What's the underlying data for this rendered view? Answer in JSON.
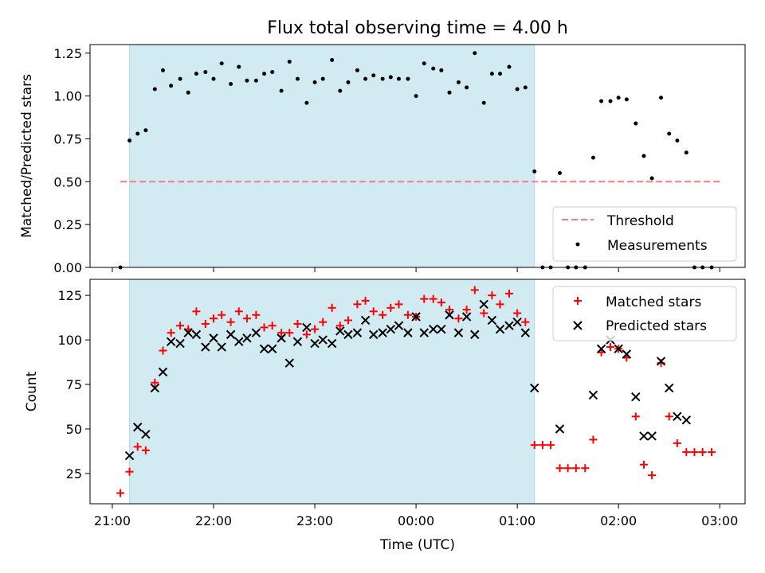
{
  "chart_data": {
    "title": "Flux total observing time = 4.00 h",
    "xlabel": "Time (UTC)",
    "x_tick_labels": [
      "21:00",
      "22:00",
      "23:00",
      "00:00",
      "01:00",
      "02:00",
      "03:00"
    ],
    "x_tick_hours": [
      21,
      22,
      23,
      24,
      25,
      26,
      27
    ],
    "x_range_hours": [
      20.78,
      27.25
    ],
    "observing_window_hours": [
      21.17,
      25.17
    ],
    "window_color": "#add8e6",
    "panels": [
      {
        "type": "scatter",
        "ylabel": "Matched/Predicted stars",
        "ylim": [
          0,
          1.3
        ],
        "y_ticks": [
          0,
          0.25,
          0.5,
          0.75,
          1.0,
          1.25
        ],
        "y_tick_labels": [
          "0.00",
          "0.25",
          "0.50",
          "0.75",
          "1.00",
          "1.25"
        ],
        "legend_position": "lower-right",
        "threshold": {
          "name": "Threshold",
          "value": 0.5,
          "x_range": [
            21.08,
            27.0
          ],
          "color": "#f08080"
        },
        "series": [
          {
            "name": "Measurements",
            "marker": "dot",
            "color": "#000000",
            "x": [
              21.08,
              21.17,
              21.25,
              21.33,
              21.42,
              21.5,
              21.58,
              21.67,
              21.75,
              21.83,
              21.92,
              22.0,
              22.08,
              22.17,
              22.25,
              22.33,
              22.42,
              22.5,
              22.58,
              22.67,
              22.75,
              22.83,
              22.92,
              23.0,
              23.08,
              23.17,
              23.25,
              23.33,
              23.42,
              23.5,
              23.58,
              23.67,
              23.75,
              23.83,
              23.92,
              24.0,
              24.08,
              24.17,
              24.25,
              24.33,
              24.42,
              24.5,
              24.58,
              24.67,
              24.75,
              24.83,
              24.92,
              25.0,
              25.08,
              25.17,
              25.25,
              25.33,
              25.42,
              25.5,
              25.58,
              25.67,
              25.75,
              25.83,
              25.92,
              26.0,
              26.08,
              26.17,
              26.25,
              26.33,
              26.42,
              26.5,
              26.58,
              26.67,
              26.75,
              26.83,
              26.92
            ],
            "y": [
              0.0,
              0.74,
              0.78,
              0.8,
              1.04,
              1.15,
              1.06,
              1.1,
              1.02,
              1.13,
              1.14,
              1.1,
              1.19,
              1.07,
              1.17,
              1.09,
              1.09,
              1.13,
              1.14,
              1.03,
              1.2,
              1.1,
              0.96,
              1.08,
              1.1,
              1.21,
              1.03,
              1.08,
              1.15,
              1.1,
              1.12,
              1.1,
              1.11,
              1.1,
              1.1,
              1.0,
              1.19,
              1.16,
              1.15,
              1.02,
              1.08,
              1.05,
              1.25,
              0.96,
              1.13,
              1.13,
              1.17,
              1.04,
              1.05,
              0.56,
              0.0,
              0.0,
              0.55,
              0.0,
              0.0,
              0.0,
              0.64,
              0.97,
              0.97,
              0.99,
              0.98,
              0.84,
              0.65,
              0.52,
              0.99,
              0.78,
              0.74,
              0.67,
              0.0,
              0.0,
              0.0
            ]
          }
        ]
      },
      {
        "type": "scatter",
        "ylabel": "Count",
        "ylim": [
          8,
          134
        ],
        "y_ticks": [
          25,
          50,
          75,
          100,
          125
        ],
        "y_tick_labels": [
          "25",
          "50",
          "75",
          "100",
          "125"
        ],
        "legend_position": "top-right",
        "series": [
          {
            "name": "Matched stars",
            "marker": "plus",
            "color": "#ff0000",
            "x": [
              21.08,
              21.17,
              21.25,
              21.33,
              21.42,
              21.5,
              21.58,
              21.67,
              21.75,
              21.83,
              21.92,
              22.0,
              22.08,
              22.17,
              22.25,
              22.33,
              22.42,
              22.5,
              22.58,
              22.67,
              22.75,
              22.83,
              22.92,
              23.0,
              23.08,
              23.17,
              23.25,
              23.33,
              23.42,
              23.5,
              23.58,
              23.67,
              23.75,
              23.83,
              23.92,
              24.0,
              24.08,
              24.17,
              24.25,
              24.33,
              24.42,
              24.5,
              24.58,
              24.67,
              24.75,
              24.83,
              24.92,
              25.0,
              25.08,
              25.17,
              25.25,
              25.33,
              25.42,
              25.5,
              25.58,
              25.67,
              25.75,
              25.83,
              25.92,
              26.0,
              26.08,
              26.17,
              26.25,
              26.33,
              26.42,
              26.5,
              26.58,
              26.67,
              26.75,
              26.83,
              26.92
            ],
            "y": [
              14,
              26,
              40,
              38,
              76,
              94,
              104,
              108,
              106,
              116,
              109,
              112,
              114,
              110,
              116,
              112,
              114,
              107,
              108,
              104,
              104,
              109,
              103,
              106,
              110,
              118,
              108,
              111,
              120,
              122,
              116,
              114,
              118,
              120,
              114,
              113,
              123,
              123,
              121,
              117,
              112,
              117,
              128,
              115,
              125,
              120,
              126,
              115,
              110,
              41,
              41,
              41,
              28,
              28,
              28,
              28,
              44,
              93,
              96,
              95,
              90,
              57,
              30,
              24,
              87,
              57,
              42,
              37,
              37,
              37,
              37
            ]
          },
          {
            "name": "Predicted stars",
            "marker": "x",
            "color": "#000000",
            "x": [
              21.17,
              21.25,
              21.33,
              21.42,
              21.5,
              21.58,
              21.67,
              21.75,
              21.83,
              21.92,
              22.0,
              22.08,
              22.17,
              22.25,
              22.33,
              22.42,
              22.5,
              22.58,
              22.67,
              22.75,
              22.83,
              22.92,
              23.0,
              23.08,
              23.17,
              23.25,
              23.33,
              23.42,
              23.5,
              23.58,
              23.67,
              23.75,
              23.83,
              23.92,
              24.0,
              24.08,
              24.17,
              24.25,
              24.33,
              24.42,
              24.5,
              24.58,
              24.67,
              24.75,
              24.83,
              24.92,
              25.0,
              25.08,
              25.17,
              25.42,
              25.75,
              25.83,
              25.92,
              26.0,
              26.08,
              26.17,
              26.25,
              26.33,
              26.42,
              26.5,
              26.58,
              26.67
            ],
            "y": [
              35,
              51,
              47,
              73,
              82,
              99,
              98,
              104,
              103,
              96,
              101,
              96,
              103,
              99,
              101,
              104,
              95,
              95,
              101,
              87,
              99,
              107,
              98,
              100,
              98,
              105,
              103,
              104,
              111,
              103,
              104,
              106,
              108,
              104,
              113,
              104,
              106,
              106,
              114,
              104,
              113,
              103,
              120,
              111,
              106,
              108,
              110,
              104,
              73,
              50,
              69,
              95,
              100,
              95,
              92,
              68,
              46,
              46,
              88,
              73,
              57,
              55
            ]
          }
        ]
      }
    ]
  }
}
